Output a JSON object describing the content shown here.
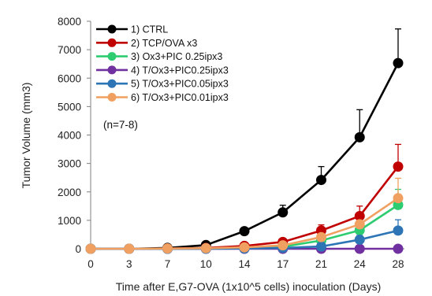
{
  "chart_data": {
    "type": "line",
    "title": "",
    "xlabel": "Time after E,G7-OVA (1x10^5 cells) inoculation (Days)",
    "ylabel": "Tumor Volume (mm3)",
    "x": [
      0,
      3,
      7,
      10,
      14,
      17,
      21,
      24,
      28
    ],
    "xlim": [
      0,
      28
    ],
    "ylim": [
      0,
      8000
    ],
    "yticks": [
      0,
      1000,
      2000,
      3000,
      4000,
      5000,
      6000,
      7000,
      8000
    ],
    "grid": false,
    "legend_position": "top-left",
    "annotation": "(n=7-8)",
    "series": [
      {
        "name": "1) CTRL",
        "color": "#000000",
        "values": [
          0,
          0,
          30,
          130,
          620,
          1280,
          2420,
          3920,
          6530
        ],
        "errors": [
          0,
          0,
          20,
          40,
          100,
          250,
          470,
          970,
          1200
        ]
      },
      {
        "name": "2) TCP/OVA x3",
        "color": "#c00000",
        "values": [
          0,
          0,
          10,
          30,
          100,
          240,
          640,
          1150,
          2890
        ],
        "errors": [
          0,
          0,
          10,
          20,
          40,
          100,
          200,
          350,
          780
        ]
      },
      {
        "name": "3) Ox3+PIC 0.25ipx3",
        "color": "#2ecc71",
        "values": [
          0,
          0,
          0,
          10,
          30,
          70,
          290,
          650,
          1540
        ],
        "errors": [
          0,
          0,
          0,
          10,
          20,
          40,
          100,
          200,
          550
        ]
      },
      {
        "name": "4) T/Ox3+PIC0.25ipx3",
        "color": "#7030a0",
        "values": [
          0,
          0,
          0,
          0,
          0,
          0,
          0,
          0,
          0
        ],
        "errors": [
          0,
          0,
          0,
          0,
          0,
          0,
          0,
          0,
          0
        ]
      },
      {
        "name": "5) T/Ox3+PIC0.05ipx3",
        "color": "#2e75b6",
        "values": [
          0,
          0,
          0,
          0,
          10,
          30,
          80,
          320,
          640
        ],
        "errors": [
          0,
          0,
          0,
          0,
          10,
          20,
          40,
          150,
          380
        ]
      },
      {
        "name": "6) T/Ox3+PIC0.01ipx3",
        "color": "#f0a060",
        "values": [
          0,
          0,
          10,
          20,
          50,
          120,
          410,
          860,
          1780
        ],
        "errors": [
          0,
          0,
          10,
          20,
          30,
          60,
          150,
          300,
          700
        ]
      }
    ]
  }
}
